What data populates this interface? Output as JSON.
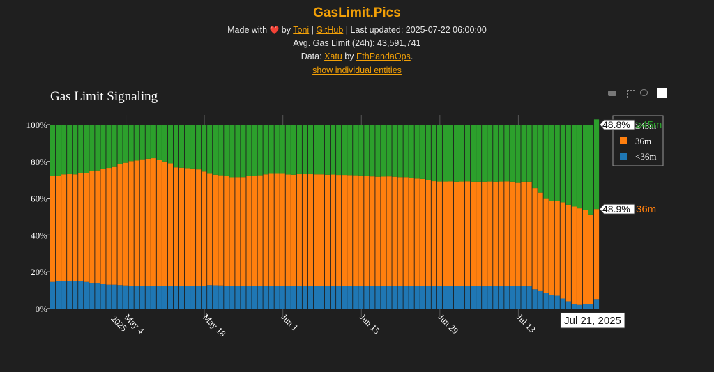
{
  "header": {
    "site_title": "GasLimit.Pics",
    "made_with": "Made with",
    "heart": "❤️",
    "by": "by",
    "toni_link": "Toni",
    "sep1": "|",
    "github_link": "GitHub",
    "sep2": "|",
    "last_updated_text": "Last updated: 2025-07-22 06:00:00",
    "avg_gas_limit_text": "Avg. Gas Limit (24h): 43,591,741",
    "data_label": "Data:",
    "xatu_link": "Xatu",
    "by2": "by",
    "ethpandaops_link": "EthPandaOps",
    "period": ".",
    "toggle_link": "show individual entities"
  },
  "chart": {
    "title": "Gas Limit Signaling",
    "hover_date": "Jul 21, 2025",
    "hover_top_value": "48.8%",
    "hover_top_label": "≥45m",
    "hover_mid_value": "48.9%",
    "hover_mid_label": "36m"
  },
  "chart_data": {
    "type": "bar",
    "stacked": true,
    "x_start": "2025-04-21",
    "x_step_days": 1,
    "x_tick_labels": [
      "May 4\n2025",
      "May 18",
      "Jun 1",
      "Jun 15",
      "Jun 29",
      "Jul 13"
    ],
    "y_tick_labels": [
      "0%",
      "20%",
      "40%",
      "60%",
      "80%",
      "100%"
    ],
    "ylim": [
      0,
      100
    ],
    "legend_position": "top-right",
    "series": [
      {
        "name": "<36m",
        "color": "#1f77b4",
        "values": [
          14.5,
          15,
          15,
          15,
          14.8,
          15,
          14.5,
          14,
          14,
          13.5,
          13,
          13,
          12.8,
          12.6,
          12.5,
          12.4,
          12.4,
          12.3,
          12.3,
          12.3,
          12.2,
          12.2,
          12.3,
          12.5,
          12.5,
          12.4,
          12.4,
          12.5,
          12.8,
          12.7,
          12.6,
          12.5,
          12.4,
          12.3,
          12.3,
          12.2,
          12.2,
          12.2,
          12.2,
          12.3,
          12.3,
          12.3,
          12.3,
          12.2,
          12.2,
          12.2,
          12.3,
          12.3,
          12.4,
          12.4,
          12.3,
          12.3,
          12.3,
          12.2,
          12.2,
          12.2,
          12.3,
          12.3,
          12.4,
          12.3,
          12.4,
          12.3,
          12.3,
          12.3,
          12.2,
          12.2,
          12.2,
          12.4,
          12.5,
          12.3,
          12.3,
          12.4,
          12.3,
          12.3,
          12.3,
          12.4,
          12.2,
          12.1,
          12.2,
          12.2,
          12.2,
          12.3,
          12.3,
          12.2,
          12.2,
          12.1,
          10.5,
          9.5,
          8.5,
          7.5,
          7,
          5.5,
          4,
          2.5,
          2,
          2.5,
          2.5,
          5.2
        ]
      },
      {
        "name": "36m",
        "color": "#ff7f0e",
        "values": [
          57.5,
          57.3,
          58,
          58.1,
          58.2,
          58.5,
          59,
          61,
          61.1,
          62.4,
          63.5,
          64,
          65.7,
          66.7,
          67.7,
          68.1,
          68.8,
          69.2,
          69.5,
          68.7,
          67.8,
          66.8,
          64.5,
          64.1,
          63.9,
          63.8,
          63.3,
          62,
          60.5,
          60.1,
          59.9,
          59.5,
          59,
          59.2,
          59.2,
          59.8,
          60,
          60.3,
          60.8,
          61,
          61,
          61,
          60.6,
          60.6,
          60.9,
          60.9,
          60.8,
          60.7,
          60.6,
          60.4,
          60.6,
          60.4,
          60.4,
          60.4,
          60.3,
          60.2,
          59.9,
          59.6,
          59.3,
          59.5,
          59.5,
          59.4,
          59.2,
          59.2,
          58.8,
          58.5,
          58.3,
          57.4,
          56.8,
          56.8,
          56.8,
          56.8,
          56.7,
          56.8,
          56.9,
          56.6,
          56.8,
          56.9,
          56.9,
          56.8,
          56.9,
          56.9,
          56.7,
          56.5,
          56.8,
          56.9,
          55,
          53.5,
          51.5,
          51,
          51.5,
          52.3,
          52.5,
          53,
          52.5,
          51,
          48.7,
          48.9
        ]
      },
      {
        "name": "≥45m",
        "color": "#2ca02c",
        "values": [
          28,
          27.7,
          27,
          26.9,
          27,
          26.5,
          26.5,
          25,
          24.9,
          24.1,
          23.5,
          23,
          21.5,
          20.7,
          19.8,
          19.5,
          18.8,
          18.5,
          18.2,
          19,
          20,
          21,
          23.2,
          23.4,
          23.6,
          23.8,
          24.3,
          25.5,
          26.7,
          27.2,
          27.5,
          28,
          28.6,
          28.5,
          28.5,
          28,
          27.8,
          27.5,
          27,
          26.7,
          26.7,
          26.7,
          27.1,
          27.2,
          26.9,
          26.9,
          26.9,
          27,
          27,
          27.2,
          27.1,
          27.3,
          27.3,
          27.4,
          27.5,
          27.6,
          27.8,
          28.1,
          28.3,
          28.2,
          28.1,
          28.3,
          28.5,
          28.5,
          29,
          29.3,
          29.5,
          30.2,
          30.7,
          30.9,
          30.9,
          30.8,
          31,
          30.9,
          30.8,
          31,
          31,
          31,
          30.9,
          31,
          30.9,
          30.8,
          31,
          31.3,
          31,
          31,
          34.5,
          37,
          40,
          41.5,
          41.5,
          42.2,
          43.5,
          44.5,
          45.5,
          46.5,
          48.8,
          48.8
        ]
      }
    ]
  }
}
